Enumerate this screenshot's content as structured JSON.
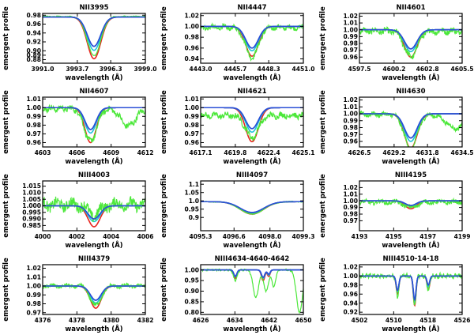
{
  "figure": {
    "xlabel": "wavelength (Å)",
    "ylabel": "emergent profile",
    "series_names": [
      "model-red",
      "model-green",
      "model-cyan",
      "model-blue"
    ],
    "colors": {
      "red": "#e8261e",
      "green": "#4ce83a",
      "cyan": "#1ec4d8",
      "blue": "#2a4fd6",
      "axis": "#000000"
    }
  },
  "chart_data": [
    {
      "type": "line",
      "title": "NII3995",
      "xlim": [
        3991.0,
        3999.0
      ],
      "ylim": [
        0.872,
        0.984
      ],
      "xticks": [
        3991.0,
        3993.7,
        3996.3,
        3999.0
      ],
      "xticklabels": [
        "3991.0",
        "3993.7",
        "3996.3",
        "3999.0"
      ],
      "yticks": [
        0.88,
        0.89,
        0.9,
        0.92,
        0.94,
        0.96,
        0.98
      ],
      "yticklabels": [
        "0.88",
        "0.89",
        "0.90",
        "0.92",
        "0.94",
        "0.96",
        "0.98"
      ],
      "lines": [
        {
          "center": 3995.0,
          "width": 0.75,
          "depths": [
            0.094,
            0.085,
            0.075,
            0.066
          ],
          "cont": 0.976
        }
      ],
      "obs_cont": 0.977,
      "obs_lines": [
        {
          "center": 3995.0,
          "width": 0.75,
          "depth": 0.088
        }
      ],
      "noise": 0.001
    },
    {
      "type": "line",
      "title": "NII4447",
      "xlim": [
        4443.0,
        4451.0
      ],
      "ylim": [
        0.932,
        1.024
      ],
      "xticks": [
        4443.0,
        4445.7,
        4448.3,
        4451.0
      ],
      "xticklabels": [
        "4443.0",
        "4445.7",
        "4448.3",
        "4451.0"
      ],
      "yticks": [
        0.94,
        0.96,
        0.98,
        1.0,
        1.02
      ],
      "yticklabels": [
        "0.94",
        "0.96",
        "0.98",
        "1.00",
        "1.02"
      ],
      "lines": [
        {
          "center": 4447.0,
          "width": 0.7,
          "depths": [
            0.055,
            0.05,
            0.045,
            0.04
          ],
          "cont": 1.0
        }
      ],
      "obs_cont": 0.998,
      "obs_lines": [
        {
          "center": 4447.0,
          "width": 0.7,
          "depth": 0.055
        }
      ],
      "noise": 0.004
    },
    {
      "type": "line",
      "title": "NII4601",
      "xlim": [
        4597.5,
        4605.5
      ],
      "ylim": [
        0.951,
        1.024
      ],
      "xticks": [
        4597.5,
        4600.2,
        4602.8,
        4605.5
      ],
      "xticklabels": [
        "4597.5",
        "4600.2",
        "4602.8",
        "4605.5"
      ],
      "yticks": [
        0.96,
        0.97,
        0.98,
        0.99,
        1.0,
        1.01,
        1.02
      ],
      "yticklabels": [
        "0.96",
        "0.97",
        "0.98",
        "0.99",
        "1.00",
        "1.01",
        "1.02"
      ],
      "lines": [
        {
          "center": 4601.5,
          "width": 0.7,
          "depths": [
            0.04,
            0.036,
            0.032,
            0.028
          ],
          "cont": 1.0
        }
      ],
      "obs_cont": 0.998,
      "obs_lines": [
        {
          "center": 4601.5,
          "width": 0.7,
          "depth": 0.038
        }
      ],
      "noise": 0.004
    },
    {
      "type": "line",
      "title": "NII4607",
      "xlim": [
        4603.0,
        4612.0
      ],
      "ylim": [
        0.955,
        1.012
      ],
      "xticks": [
        4603,
        4606,
        4609,
        4612
      ],
      "xticklabels": [
        "4603",
        "4606",
        "4609",
        "4612"
      ],
      "yticks": [
        0.96,
        0.97,
        0.98,
        0.99,
        1.0,
        1.01
      ],
      "yticklabels": [
        "0.96",
        "0.97",
        "0.98",
        "0.99",
        "1.00",
        "1.01"
      ],
      "lines": [
        {
          "center": 4607.2,
          "width": 0.7,
          "depths": [
            0.04,
            0.035,
            0.029,
            0.025
          ],
          "cont": 1.0
        }
      ],
      "obs_cont": 0.999,
      "obs_lines": [
        {
          "center": 4607.2,
          "width": 0.75,
          "depth": 0.038
        },
        {
          "center": 4610.5,
          "width": 0.9,
          "depth": 0.02
        }
      ],
      "noise": 0.003
    },
    {
      "type": "line",
      "title": "NII4621",
      "xlim": [
        4617.1,
        4625.1
      ],
      "ylim": [
        0.955,
        1.012
      ],
      "xticks": [
        4617.1,
        4619.8,
        4622.4,
        4625.1
      ],
      "xticklabels": [
        "4617.1",
        "4619.8",
        "4622.4",
        "4625.1"
      ],
      "yticks": [
        0.96,
        0.97,
        0.98,
        0.99,
        1.0,
        1.01
      ],
      "yticklabels": [
        "0.96",
        "0.97",
        "0.98",
        "0.99",
        "1.00",
        "1.01"
      ],
      "lines": [
        {
          "center": 4621.1,
          "width": 0.7,
          "depths": [
            0.039,
            0.033,
            0.028,
            0.024
          ],
          "cont": 1.0
        }
      ],
      "obs_cont": 0.991,
      "obs_lines": [
        {
          "center": 4621.1,
          "width": 0.7,
          "depth": 0.025
        }
      ],
      "noise": 0.003
    },
    {
      "type": "line",
      "title": "NII4630",
      "xlim": [
        4626.5,
        4634.5
      ],
      "ylim": [
        0.952,
        1.024
      ],
      "xticks": [
        4626.5,
        4629.2,
        4631.8,
        4634.5
      ],
      "xticklabels": [
        "4626.5",
        "4629.2",
        "4631.8",
        "4634.5"
      ],
      "yticks": [
        0.96,
        0.97,
        0.98,
        0.99,
        1.0,
        1.01,
        1.02
      ],
      "yticklabels": [
        "0.96",
        "0.97",
        "0.98",
        "0.99",
        "1.00",
        "1.01",
        "1.02"
      ],
      "lines": [
        {
          "center": 4630.5,
          "width": 0.7,
          "depths": [
            0.05,
            0.045,
            0.04,
            0.035
          ],
          "cont": 1.0
        }
      ],
      "obs_cont": 0.999,
      "obs_lines": [
        {
          "center": 4630.5,
          "width": 0.7,
          "depth": 0.05
        },
        {
          "center": 4634.0,
          "width": 1.0,
          "depth": 0.02
        }
      ],
      "noise": 0.003
    },
    {
      "type": "line",
      "title": "NIII4003",
      "xlim": [
        4000.0,
        4006.0
      ],
      "ylim": [
        0.981,
        1.019
      ],
      "xticks": [
        4000,
        4002,
        4004,
        4006
      ],
      "xticklabels": [
        "4000",
        "4002",
        "4004",
        "4006"
      ],
      "yticks": [
        0.985,
        0.99,
        0.995,
        1.0,
        1.005,
        1.01,
        1.015
      ],
      "yticklabels": [
        "0.985",
        "0.990",
        "0.995",
        "1.000",
        "1.005",
        "1.010",
        "1.015"
      ],
      "lines": [
        {
          "center": 4003.0,
          "width": 0.5,
          "depths": [
            0.016,
            0.014,
            0.012,
            0.01
          ],
          "cont": 1.0
        }
      ],
      "obs_cont": 1.001,
      "obs_lines": [
        {
          "center": 4003.0,
          "width": 0.5,
          "depth": 0.008
        }
      ],
      "noise": 0.004
    },
    {
      "type": "line",
      "title": "NIII4097",
      "xlim": [
        4095.3,
        4099.3
      ],
      "ylim": [
        0.82,
        1.12
      ],
      "xticks": [
        4095.3,
        4096.6,
        4098.0,
        4099.3
      ],
      "xticklabels": [
        "4095.3",
        "4096.6",
        "4098.0",
        "4099.3"
      ],
      "yticks": [
        0.9,
        0.95,
        1.0,
        1.05,
        1.1
      ],
      "yticklabels": [
        "0.9",
        "0.95",
        "1.0",
        "1.05",
        "1.1"
      ],
      "lines": [
        {
          "center": 4097.3,
          "width": 0.65,
          "depths": [
            0.075,
            0.07,
            0.068,
            0.065
          ],
          "cont": 0.995
        }
      ],
      "obs_cont": 0.995,
      "obs_lines": [
        {
          "center": 4097.3,
          "width": 0.65,
          "depth": 0.075
        }
      ],
      "noise": 0.002
    },
    {
      "type": "line",
      "title": "NIII4195",
      "xlim": [
        4193.0,
        4199.0
      ],
      "ylim": [
        0.955,
        1.03
      ],
      "xticks": [
        4193,
        4195,
        4197,
        4199
      ],
      "xticklabels": [
        "4193",
        "4195",
        "4197",
        "4199"
      ],
      "yticks": [
        0.97,
        0.98,
        0.99,
        1.0,
        1.01,
        1.02
      ],
      "yticklabels": [
        "0.97",
        "0.98",
        "0.99",
        "1.00",
        "1.01",
        "1.02"
      ],
      "lines": [
        {
          "center": 4196.0,
          "width": 0.45,
          "depths": [
            0.012,
            0.01,
            0.008,
            0.007
          ],
          "cont": 1.0
        }
      ],
      "obs_cont": 0.998,
      "obs_lines": [
        {
          "center": 4196.0,
          "width": 0.45,
          "depth": 0.008
        }
      ],
      "noise": 0.003
    },
    {
      "type": "line",
      "title": "NIII4379",
      "xlim": [
        4376.0,
        4382.0
      ],
      "ylim": [
        0.968,
        1.024
      ],
      "xticks": [
        4376,
        4378,
        4380,
        4382
      ],
      "xticklabels": [
        "4376",
        "4378",
        "4380",
        "4382"
      ],
      "yticks": [
        0.97,
        0.98,
        0.99,
        1.0,
        1.01,
        1.02
      ],
      "yticklabels": [
        "0.97",
        "0.98",
        "0.99",
        "1.00",
        "1.01",
        "1.02"
      ],
      "lines": [
        {
          "center": 4379.1,
          "width": 0.45,
          "depths": [
            0.025,
            0.022,
            0.019,
            0.016
          ],
          "cont": 1.0
        }
      ],
      "obs_cont": 1.0,
      "obs_lines": [
        {
          "center": 4379.1,
          "width": 0.45,
          "depth": 0.022
        }
      ],
      "noise": 0.002
    },
    {
      "type": "line",
      "title": "NIII4634-4640-4642",
      "xlim": [
        4626.0,
        4650.0
      ],
      "ylim": [
        0.79,
        1.025
      ],
      "xticks": [
        4626,
        4634,
        4642,
        4650
      ],
      "xticklabels": [
        "4626",
        "4634",
        "4642",
        "4650"
      ],
      "yticks": [
        0.8,
        0.85,
        0.9,
        0.95,
        1.0
      ],
      "yticklabels": [
        "0.80",
        "0.85",
        "0.90",
        "0.95",
        "1.00"
      ],
      "lines": [
        {
          "center": 4634.1,
          "width": 0.5,
          "depths": [
            0.04,
            0.035,
            0.032,
            0.03
          ],
          "cont": 1.0
        },
        {
          "center": 4640.6,
          "width": 0.55,
          "depths": [
            0.05,
            0.045,
            0.04,
            0.035
          ],
          "cont": 1.0
        },
        {
          "center": 4641.9,
          "width": 0.45,
          "depths": [
            0.03,
            0.027,
            0.024,
            0.02
          ],
          "cont": 1.0
        }
      ],
      "obs_cont": 1.0,
      "obs_lines": [
        {
          "center": 4634.1,
          "width": 0.6,
          "depth": 0.05
        },
        {
          "center": 4638.9,
          "width": 0.9,
          "depth": 0.13
        },
        {
          "center": 4641.3,
          "width": 0.8,
          "depth": 0.1
        },
        {
          "center": 4643.1,
          "width": 0.6,
          "depth": 0.08
        },
        {
          "center": 4649.1,
          "width": 1.0,
          "depth": 0.2
        }
      ],
      "noise": 0.003
    },
    {
      "type": "line",
      "title": "NIII4510-14-18",
      "xlim": [
        4502.0,
        4526.0
      ],
      "ylim": [
        0.915,
        1.025
      ],
      "xticks": [
        4502,
        4510,
        4518,
        4526
      ],
      "xticklabels": [
        "4502",
        "4510",
        "4518",
        "4526"
      ],
      "yticks": [
        0.92,
        0.94,
        0.96,
        0.98,
        1.0,
        1.02
      ],
      "yticklabels": [
        "0.92",
        "0.94",
        "0.96",
        "0.98",
        "1.00",
        "1.02"
      ],
      "lines": [
        {
          "center": 4510.9,
          "width": 0.45,
          "depths": [
            0.04,
            0.038,
            0.035,
            0.032
          ],
          "cont": 1.0
        },
        {
          "center": 4514.9,
          "width": 0.45,
          "depths": [
            0.065,
            0.06,
            0.057,
            0.053
          ],
          "cont": 1.0
        },
        {
          "center": 4518.1,
          "width": 0.45,
          "depths": [
            0.03,
            0.027,
            0.024,
            0.02
          ],
          "cont": 1.0
        }
      ],
      "obs_cont": 1.0,
      "obs_lines": [
        {
          "center": 4510.9,
          "width": 0.45,
          "depth": 0.045
        },
        {
          "center": 4514.9,
          "width": 0.45,
          "depth": 0.065
        },
        {
          "center": 4518.1,
          "width": 0.45,
          "depth": 0.03
        }
      ],
      "noise": 0.004
    }
  ]
}
